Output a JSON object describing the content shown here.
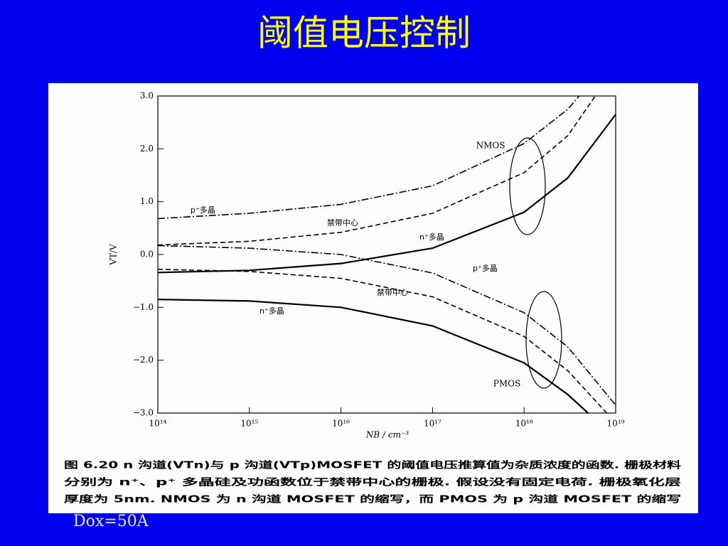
{
  "slide": {
    "title": "阈值电压控制",
    "footer": "Dox=50A"
  },
  "chart_data": {
    "type": "line",
    "xscale": "log",
    "xlabel": "NB / cm⁻³",
    "ylabel": "VT/V",
    "xlim": [
      100000000000000.0,
      1e+19
    ],
    "xticks": [
      {
        "value": 100000000000000.0,
        "label": "10¹⁴"
      },
      {
        "value": 1000000000000000.0,
        "label": "10¹⁵"
      },
      {
        "value": 1e+16,
        "label": "10¹⁶"
      },
      {
        "value": 1e+17,
        "label": "10¹⁷"
      },
      {
        "value": 1e+18,
        "label": "10¹⁸"
      },
      {
        "value": 1e+19,
        "label": "10¹⁹"
      }
    ],
    "ylim": [
      -3,
      3
    ],
    "yticks": [
      {
        "value": 3,
        "label": "3.0"
      },
      {
        "value": 2,
        "label": "2.0"
      },
      {
        "value": 1,
        "label": "1.0"
      },
      {
        "value": 0,
        "label": "0.0"
      },
      {
        "value": -1,
        "label": "−1.0"
      },
      {
        "value": -2,
        "label": "−2.0"
      },
      {
        "value": -3,
        "label": "−3.0"
      }
    ],
    "annotations": [
      "NMOS",
      "PMOS"
    ],
    "series": [
      {
        "name": "p⁺多晶",
        "color": "#000000",
        "style": "dashdot",
        "x": [
          100000000000000.0,
          1000000000000000.0,
          1e+16,
          1e+17,
          1e+18,
          3e+18,
          4e+18
        ],
        "values": [
          0.68,
          0.78,
          0.95,
          1.3,
          2.1,
          2.75,
          3.0
        ]
      },
      {
        "name": "禁带中心",
        "color": "#000000",
        "style": "dashed",
        "x": [
          100000000000000.0,
          1000000000000000.0,
          1e+16,
          1e+17,
          1e+18,
          3e+18,
          6e+18
        ],
        "values": [
          0.18,
          0.25,
          0.42,
          0.78,
          1.55,
          2.25,
          3.0
        ]
      },
      {
        "name": "n⁺多晶",
        "color": "#000000",
        "style": "solid",
        "x": [
          100000000000000.0,
          1000000000000000.0,
          1e+16,
          1e+17,
          1e+18,
          3e+18,
          1e+19
        ],
        "values": [
          -0.34,
          -0.3,
          -0.17,
          0.12,
          0.8,
          1.45,
          2.65
        ]
      },
      {
        "name": "p⁺多晶",
        "color": "#000000",
        "style": "dashdot",
        "x": [
          100000000000000.0,
          1000000000000000.0,
          1e+16,
          1e+17,
          1e+18,
          3e+18,
          1e+19
        ],
        "values": [
          0.17,
          0.12,
          0.0,
          -0.35,
          -1.1,
          -1.75,
          -2.85
        ]
      },
      {
        "name": "禁带中心",
        "color": "#000000",
        "style": "dashed",
        "x": [
          100000000000000.0,
          1000000000000000.0,
          1e+16,
          1e+17,
          1e+18,
          3e+18,
          8e+18
        ],
        "values": [
          -0.28,
          -0.32,
          -0.45,
          -0.8,
          -1.55,
          -2.2,
          -3.0
        ]
      },
      {
        "name": "n⁺多晶",
        "color": "#000000",
        "style": "solid",
        "x": [
          100000000000000.0,
          1000000000000000.0,
          1e+16,
          1e+17,
          1e+18,
          3e+18,
          5e+18
        ],
        "values": [
          -0.85,
          -0.88,
          -1.0,
          -1.35,
          -2.05,
          -2.65,
          -3.0
        ]
      }
    ],
    "caption": [
      "图 6.20  n 沟道(VTn)与 p 沟道(VTp)MOSFET 的阈值电压推算值为杂质浓度的函数. 栅极材料",
      "分别为 n⁺、p⁺ 多晶硅及功函数位于禁带中心的栅极. 假设没有固定电荷. 栅极氧化层",
      "厚度为 5nm. NMOS 为 n 沟道 MOSFET 的缩写，而 PMOS 为 p 沟道 MOSFET 的缩写"
    ]
  }
}
